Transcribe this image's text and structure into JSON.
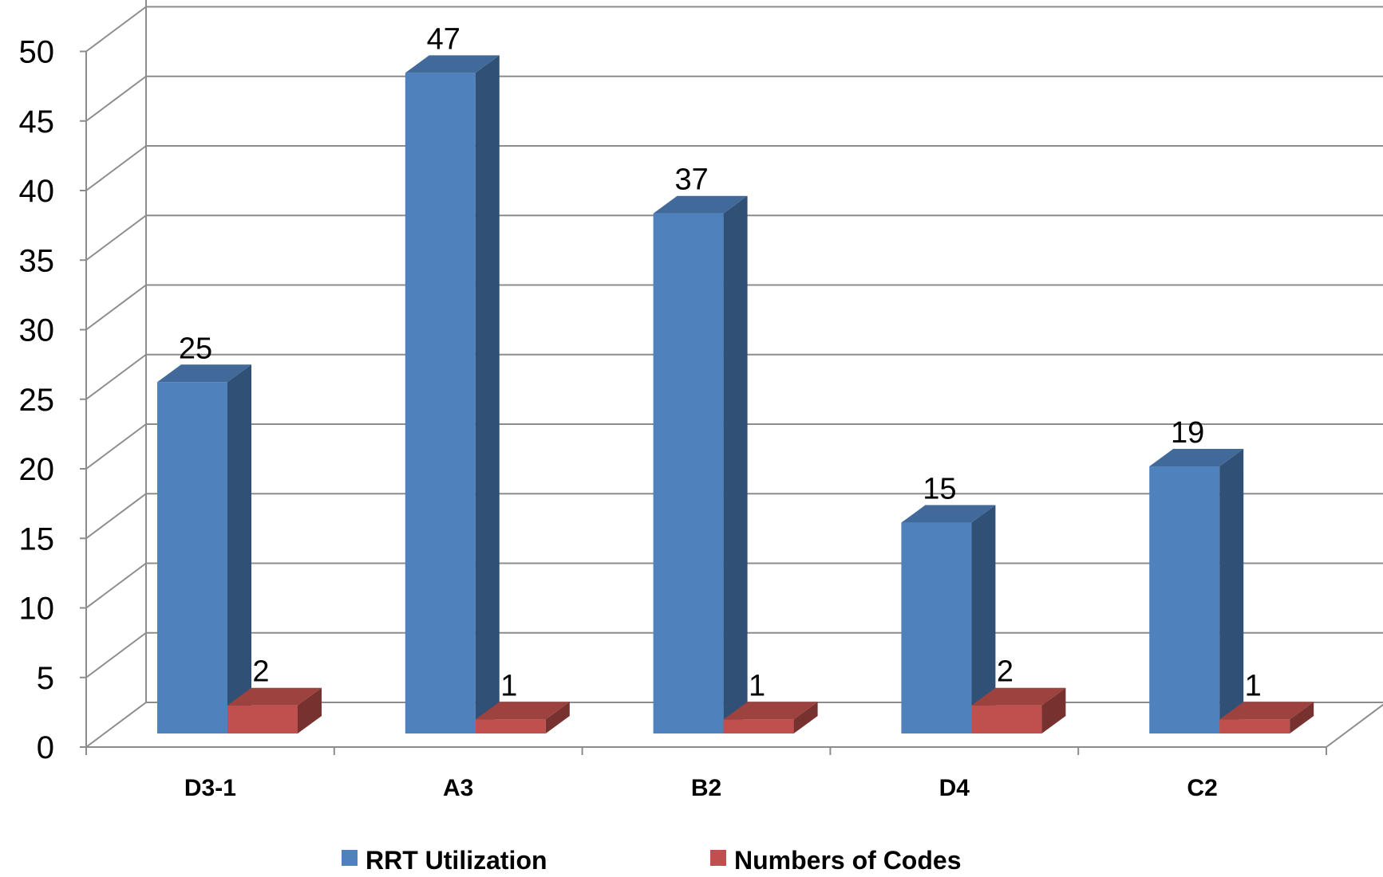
{
  "chart_data": {
    "type": "bar",
    "title": "",
    "xlabel": "",
    "ylabel": "",
    "categories": [
      "D3-1",
      "A3",
      "B2",
      "D4",
      "C2"
    ],
    "series": [
      {
        "name": "RRT Utilization",
        "values": [
          25,
          47,
          37,
          15,
          19
        ],
        "color": "#4f81bd"
      },
      {
        "name": "Numbers of Codes",
        "values": [
          2,
          1,
          1,
          2,
          1
        ],
        "color": "#c0504d"
      }
    ],
    "y_ticks": [
      "0",
      "5",
      "10",
      "15",
      "20",
      "25",
      "30",
      "35",
      "40",
      "45",
      "50"
    ],
    "ylim": [
      0,
      50
    ],
    "grid": true,
    "legend_position": "bottom",
    "three_d": true
  }
}
